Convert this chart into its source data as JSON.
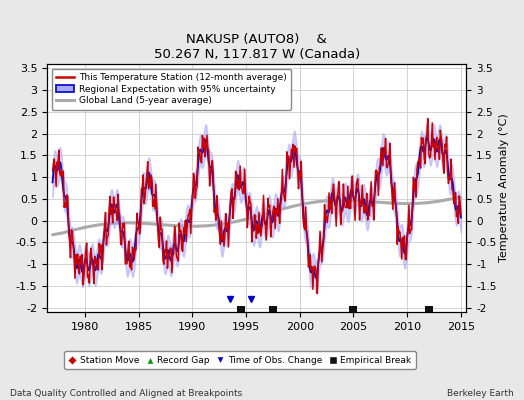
{
  "title": "NAKUSP (AUTO8)    &",
  "subtitle": "50.267 N, 117.817 W (Canada)",
  "ylabel": "Temperature Anomaly (°C)",
  "footer_left": "Data Quality Controlled and Aligned at Breakpoints",
  "footer_right": "Berkeley Earth",
  "xlim": [
    1976.5,
    2015.5
  ],
  "ylim": [
    -2.1,
    3.6
  ],
  "yticks": [
    -2,
    -1.5,
    -1,
    -0.5,
    0,
    0.5,
    1,
    1.5,
    2,
    2.5,
    3,
    3.5
  ],
  "xticks": [
    1980,
    1985,
    1990,
    1995,
    2000,
    2005,
    2010,
    2015
  ],
  "bg_color": "#e8e8e8",
  "plot_bg_color": "#ffffff",
  "grid_color": "#cccccc",
  "station_line_color": "#cc0000",
  "regional_line_color": "#0000cc",
  "regional_fill_color": "#aaaaff",
  "global_line_color": "#aaaaaa",
  "empirical_breaks": [
    1994.5,
    1997.5,
    2005.0,
    2012.0
  ],
  "obs_changes": [
    1993.5,
    1995.5
  ],
  "legend_line1": "This Temperature Station (12-month average)",
  "legend_line2": "Regional Expectation with 95% uncertainty",
  "legend_line3": "Global Land (5-year average)",
  "marker_label1": "Station Move",
  "marker_label2": "Record Gap",
  "marker_label3": "Time of Obs. Change",
  "marker_label4": "Empirical Break"
}
